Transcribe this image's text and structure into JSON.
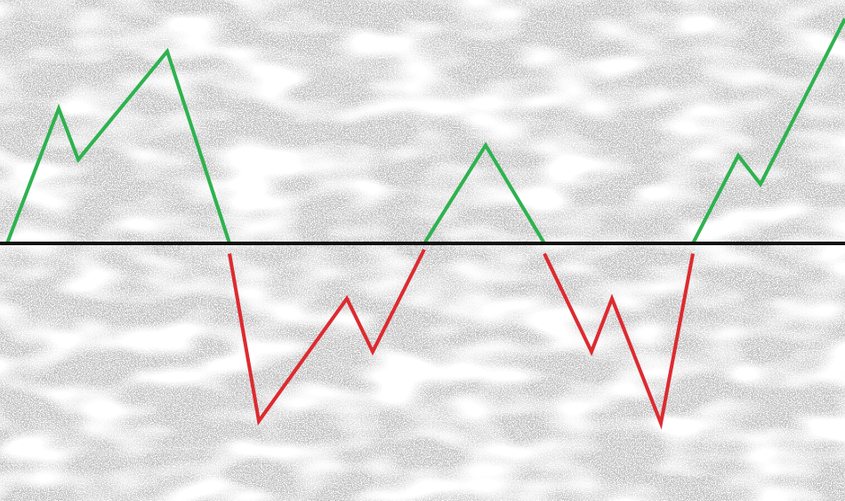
{
  "chart_data": {
    "type": "line",
    "title": "",
    "xlabel": "",
    "ylabel": "",
    "xlim": [
      0,
      950
    ],
    "ylim": [
      -90,
      110
    ],
    "baseline": 0,
    "grid": false,
    "legend": "none",
    "background": "grey-noise",
    "colors": {
      "above": "#2eb24f",
      "below": "#dd2a30",
      "baseline": "#111111",
      "noise": "#8c8c8c"
    },
    "series": [
      {
        "sign": "above",
        "points": [
          [
            8,
            0
          ],
          [
            66,
            66
          ],
          [
            88,
            41
          ],
          [
            188,
            94
          ],
          [
            258,
            0
          ]
        ]
      },
      {
        "sign": "below",
        "points": [
          [
            258,
            -5
          ],
          [
            291,
            -87
          ],
          [
            390,
            -27
          ],
          [
            419,
            -53
          ],
          [
            477,
            -3
          ]
        ]
      },
      {
        "sign": "above",
        "points": [
          [
            477,
            0
          ],
          [
            546,
            48
          ],
          [
            612,
            0
          ]
        ]
      },
      {
        "sign": "below",
        "points": [
          [
            612,
            -5
          ],
          [
            665,
            -53
          ],
          [
            688,
            -27
          ],
          [
            743,
            -88
          ],
          [
            779,
            -5
          ]
        ]
      },
      {
        "sign": "above",
        "points": [
          [
            779,
            0
          ],
          [
            830,
            43
          ],
          [
            855,
            29
          ],
          [
            950,
            110
          ]
        ]
      }
    ]
  }
}
